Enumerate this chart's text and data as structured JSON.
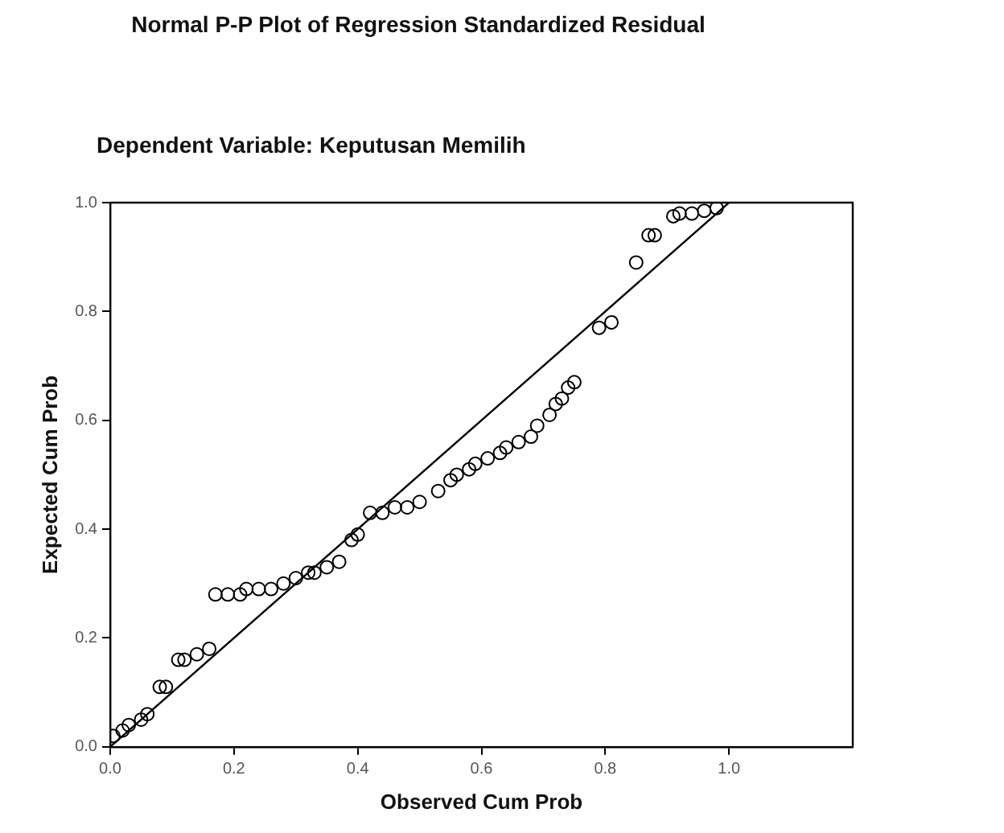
{
  "chart_data": {
    "type": "scatter",
    "title": "Normal P-P Plot of Regression Standardized Residual",
    "subtitle": "Dependent Variable: Keputusan Memilih",
    "xlabel": "Observed Cum Prob",
    "ylabel": "Expected Cum Prob",
    "x": [
      0.005,
      0.02,
      0.03,
      0.05,
      0.06,
      0.08,
      0.09,
      0.11,
      0.12,
      0.14,
      0.16,
      0.17,
      0.19,
      0.21,
      0.22,
      0.24,
      0.26,
      0.28,
      0.3,
      0.32,
      0.33,
      0.35,
      0.37,
      0.39,
      0.4,
      0.42,
      0.44,
      0.46,
      0.48,
      0.5,
      0.53,
      0.55,
      0.56,
      0.58,
      0.59,
      0.61,
      0.63,
      0.64,
      0.66,
      0.68,
      0.69,
      0.71,
      0.72,
      0.73,
      0.74,
      0.75,
      0.79,
      0.81,
      0.85,
      0.87,
      0.88,
      0.91,
      0.92,
      0.94,
      0.96,
      0.98
    ],
    "series": [
      {
        "color": "#000000",
        "values": [
          0.02,
          0.03,
          0.04,
          0.05,
          0.06,
          0.11,
          0.11,
          0.16,
          0.16,
          0.17,
          0.18,
          0.28,
          0.28,
          0.28,
          0.29,
          0.29,
          0.29,
          0.3,
          0.31,
          0.32,
          0.32,
          0.33,
          0.34,
          0.38,
          0.39,
          0.43,
          0.43,
          0.44,
          0.44,
          0.45,
          0.47,
          0.49,
          0.5,
          0.51,
          0.52,
          0.53,
          0.54,
          0.55,
          0.56,
          0.57,
          0.59,
          0.61,
          0.63,
          0.64,
          0.66,
          0.67,
          0.77,
          0.78,
          0.89,
          0.94,
          0.94,
          0.975,
          0.98,
          0.98,
          0.985,
          0.99
        ]
      },
      {
        "type": "line",
        "color": "#000000",
        "x": [
          0,
          1
        ],
        "values": [
          0,
          1
        ],
        "marker": "none"
      }
    ],
    "marker": "circle",
    "grid": false,
    "legend": false,
    "xlim": [
      0,
      1.2
    ],
    "xticks": [
      {
        "value": 0,
        "label": "0.0"
      },
      {
        "value": 0.2,
        "label": "0.2"
      },
      {
        "value": 0.4,
        "label": "0.4"
      },
      {
        "value": 0.6,
        "label": "0.6"
      },
      {
        "value": 0.8,
        "label": "0.8"
      },
      {
        "value": 1,
        "label": "1.0"
      }
    ],
    "ylim": [
      0,
      1
    ],
    "yticks": [
      {
        "value": 0,
        "label": "0.0"
      },
      {
        "value": 0.2,
        "label": "0.2"
      },
      {
        "value": 0.4,
        "label": "0.4"
      },
      {
        "value": 0.6,
        "label": "0.6"
      },
      {
        "value": 0.8,
        "label": "0.8"
      },
      {
        "value": 1,
        "label": "1.0"
      }
    ]
  }
}
